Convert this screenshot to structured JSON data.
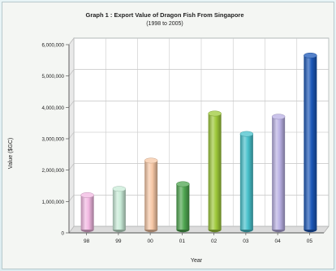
{
  "chart_data": {
    "type": "bar",
    "title": "Graph 1 :  Export Value of Dragon Fish From Singapore",
    "subtitle": "(1998 to 2005)",
    "xlabel": "Year",
    "ylabel": "Value ($GC)",
    "categories": [
      "98",
      "99",
      "00",
      "01",
      "02",
      "03",
      "04",
      "05"
    ],
    "values": [
      1100000,
      1300000,
      2200000,
      1450000,
      3700000,
      3050000,
      3600000,
      5550000
    ],
    "ylim": [
      0,
      6000000
    ],
    "yticks": [
      "0",
      "1,000,000",
      "2,000,000",
      "3,000,000",
      "4,000,000",
      "5,000,000",
      "6,000,000"
    ],
    "grid": true,
    "colors": [
      "#f2b8e2",
      "#c9ecd8",
      "#f7c8a6",
      "#4fa650",
      "#9ec93a",
      "#48c2cc",
      "#b9b0e4",
      "#1c58b8"
    ]
  }
}
